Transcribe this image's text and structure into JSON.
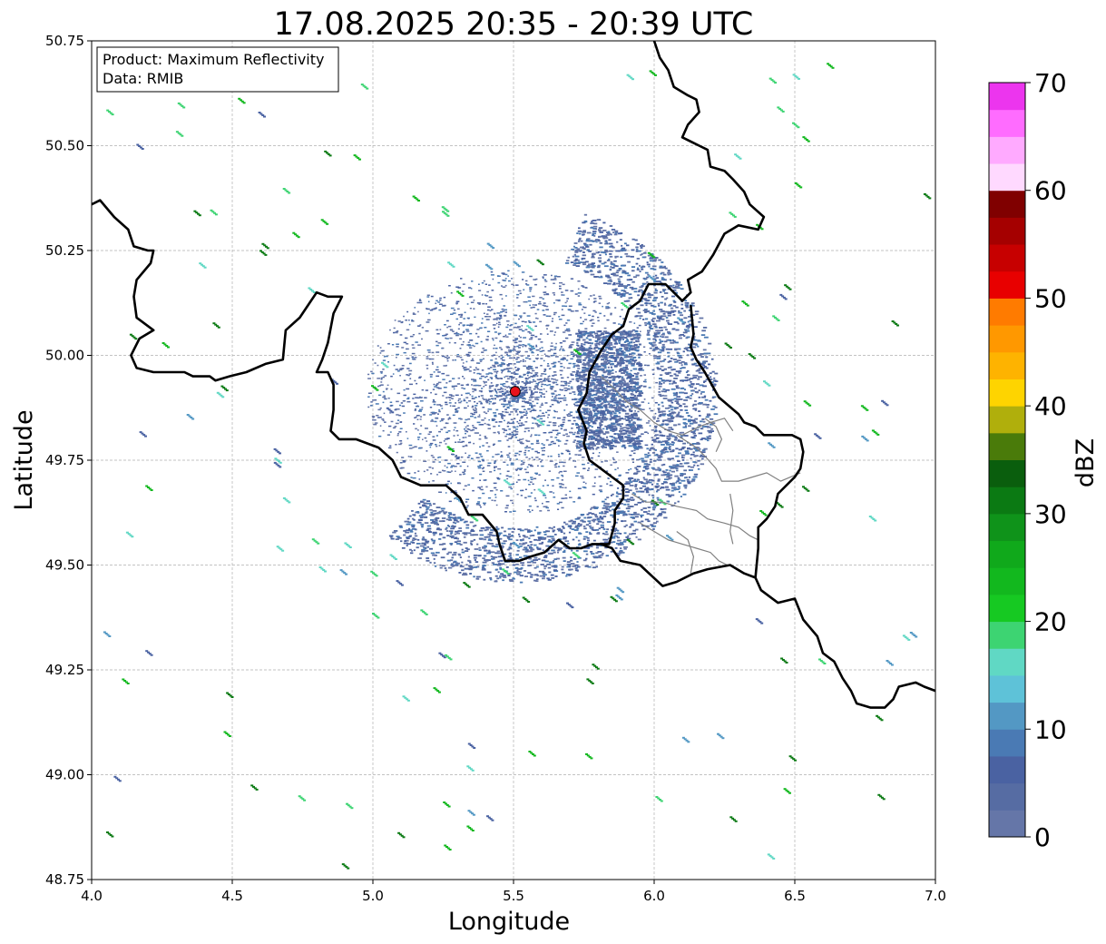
{
  "title": "17.08.2025 20:35 - 20:39 UTC",
  "info_box": {
    "product": "Product: Maximum Reflectivity",
    "data": "Data: RMIB"
  },
  "x_axis": {
    "label": "Longitude",
    "range": [
      4.0,
      7.0
    ],
    "ticks": [
      {
        "value": 4.0,
        "label": "4.0"
      },
      {
        "value": 4.5,
        "label": "4.5"
      },
      {
        "value": 5.0,
        "label": "5.0"
      },
      {
        "value": 5.5,
        "label": "5.5"
      },
      {
        "value": 6.0,
        "label": "6.0"
      },
      {
        "value": 6.5,
        "label": "6.5"
      },
      {
        "value": 7.0,
        "label": "7.0"
      }
    ]
  },
  "y_axis": {
    "label": "Latitude",
    "range": [
      48.75,
      50.75
    ],
    "ticks": [
      {
        "value": 48.75,
        "label": "48.75"
      },
      {
        "value": 49.0,
        "label": "49.00"
      },
      {
        "value": 49.25,
        "label": "49.25"
      },
      {
        "value": 49.5,
        "label": "49.50"
      },
      {
        "value": 49.75,
        "label": "49.75"
      },
      {
        "value": 50.0,
        "label": "50.00"
      },
      {
        "value": 50.25,
        "label": "50.25"
      },
      {
        "value": 50.5,
        "label": "50.50"
      },
      {
        "value": 50.75,
        "label": "50.75"
      }
    ]
  },
  "grid": true,
  "radar_site": {
    "lon": 5.506,
    "lat": 49.914,
    "color": "#e8131b"
  },
  "colorbar": {
    "label": "dBZ",
    "range": [
      0,
      70
    ],
    "ticks": [
      {
        "value": 0,
        "label": "0"
      },
      {
        "value": 10,
        "label": "10"
      },
      {
        "value": 20,
        "label": "20"
      },
      {
        "value": 30,
        "label": "30"
      },
      {
        "value": 40,
        "label": "40"
      },
      {
        "value": 50,
        "label": "50"
      },
      {
        "value": 60,
        "label": "60"
      },
      {
        "value": 70,
        "label": "70"
      }
    ],
    "colors": [
      "#6576a8",
      "#566ca3",
      "#4a62a2",
      "#4a7ab4",
      "#5398c4",
      "#5ec2d8",
      "#60d8c4",
      "#3dd472",
      "#16c922",
      "#12b81e",
      "#10a91b",
      "#0f931a",
      "#0b7a13",
      "#0a5e0d",
      "#4a7b0a",
      "#b0af0c",
      "#fed400",
      "#feb300",
      "#ff9800",
      "#ff7b00",
      "#e80000",
      "#c70000",
      "#a50000",
      "#800000",
      "#ffd9ff",
      "#ffaaff",
      "#ff6cff",
      "#ec35ee"
    ]
  },
  "map_layers": {
    "borders": [
      [
        [
          4.0,
          50.36
        ],
        [
          4.03,
          50.37
        ],
        [
          4.08,
          50.33
        ],
        [
          4.13,
          50.3
        ],
        [
          4.15,
          50.26
        ],
        [
          4.2,
          50.25
        ],
        [
          4.22,
          50.25
        ],
        [
          4.21,
          50.22
        ],
        [
          4.16,
          50.18
        ],
        [
          4.15,
          50.14
        ],
        [
          4.16,
          50.09
        ],
        [
          4.22,
          50.06
        ],
        [
          4.17,
          50.04
        ],
        [
          4.14,
          50.0
        ],
        [
          4.16,
          49.97
        ],
        [
          4.22,
          49.96
        ],
        [
          4.33,
          49.96
        ],
        [
          4.36,
          49.95
        ],
        [
          4.42,
          49.95
        ],
        [
          4.44,
          49.94
        ],
        [
          4.49,
          49.95
        ],
        [
          4.55,
          49.96
        ],
        [
          4.62,
          49.98
        ],
        [
          4.68,
          49.99
        ],
        [
          4.69,
          50.06
        ],
        [
          4.74,
          50.09
        ],
        [
          4.78,
          50.13
        ],
        [
          4.8,
          50.15
        ],
        [
          4.84,
          50.14
        ],
        [
          4.89,
          50.14
        ],
        [
          4.86,
          50.1
        ],
        [
          4.84,
          50.03
        ],
        [
          4.82,
          49.99
        ],
        [
          4.8,
          49.96
        ],
        [
          4.84,
          49.96
        ],
        [
          4.86,
          49.93
        ],
        [
          4.86,
          49.87
        ],
        [
          4.85,
          49.82
        ],
        [
          4.88,
          49.8
        ],
        [
          4.94,
          49.8
        ],
        [
          4.98,
          49.79
        ],
        [
          5.02,
          49.78
        ],
        [
          5.07,
          49.75
        ],
        [
          5.1,
          49.71
        ],
        [
          5.17,
          49.69
        ],
        [
          5.22,
          49.69
        ],
        [
          5.26,
          49.69
        ],
        [
          5.31,
          49.66
        ],
        [
          5.34,
          49.62
        ],
        [
          5.39,
          49.62
        ],
        [
          5.44,
          49.58
        ],
        [
          5.45,
          49.55
        ],
        [
          5.47,
          49.51
        ],
        [
          5.52,
          49.51
        ],
        [
          5.56,
          49.52
        ],
        [
          5.61,
          49.53
        ],
        [
          5.66,
          49.56
        ],
        [
          5.7,
          49.54
        ],
        [
          5.74,
          49.54
        ],
        [
          5.78,
          49.55
        ],
        [
          5.81,
          49.55
        ],
        [
          5.85,
          49.54
        ],
        [
          5.88,
          49.51
        ],
        [
          5.95,
          49.5
        ],
        [
          6.03,
          49.45
        ],
        [
          6.08,
          49.46
        ],
        [
          6.14,
          49.48
        ],
        [
          6.19,
          49.49
        ],
        [
          6.27,
          49.5
        ],
        [
          6.32,
          49.48
        ],
        [
          6.36,
          49.47
        ],
        [
          6.38,
          49.44
        ],
        [
          6.44,
          49.41
        ],
        [
          6.5,
          49.42
        ],
        [
          6.53,
          49.37
        ],
        [
          6.58,
          49.33
        ],
        [
          6.6,
          49.29
        ],
        [
          6.64,
          49.27
        ],
        [
          6.67,
          49.23
        ],
        [
          6.7,
          49.2
        ],
        [
          6.72,
          49.17
        ],
        [
          6.77,
          49.16
        ],
        [
          6.82,
          49.16
        ],
        [
          6.85,
          49.18
        ],
        [
          6.87,
          49.21
        ],
        [
          6.93,
          49.22
        ],
        [
          6.96,
          49.21
        ],
        [
          7.0,
          49.2
        ]
      ],
      [
        [
          6.0,
          50.75
        ],
        [
          6.02,
          50.71
        ],
        [
          6.05,
          50.68
        ],
        [
          6.07,
          50.64
        ],
        [
          6.12,
          50.62
        ],
        [
          6.15,
          50.61
        ],
        [
          6.16,
          50.58
        ],
        [
          6.12,
          50.55
        ],
        [
          6.1,
          50.52
        ],
        [
          6.16,
          50.5
        ],
        [
          6.19,
          50.49
        ],
        [
          6.2,
          50.45
        ],
        [
          6.25,
          50.44
        ],
        [
          6.28,
          50.42
        ],
        [
          6.32,
          50.39
        ],
        [
          6.34,
          50.36
        ],
        [
          6.39,
          50.33
        ],
        [
          6.37,
          50.3
        ],
        [
          6.3,
          50.31
        ],
        [
          6.25,
          50.29
        ],
        [
          6.21,
          50.24
        ],
        [
          6.17,
          50.2
        ],
        [
          6.12,
          50.18
        ],
        [
          6.13,
          50.15
        ],
        [
          6.1,
          50.13
        ],
        [
          6.04,
          50.17
        ],
        [
          5.98,
          50.17
        ],
        [
          5.95,
          50.13
        ],
        [
          5.91,
          50.11
        ],
        [
          5.89,
          50.07
        ],
        [
          5.85,
          50.05
        ],
        [
          5.81,
          50.01
        ],
        [
          5.77,
          49.96
        ],
        [
          5.76,
          49.91
        ],
        [
          5.73,
          49.87
        ],
        [
          5.76,
          49.82
        ],
        [
          5.75,
          49.79
        ],
        [
          5.77,
          49.75
        ],
        [
          5.81,
          49.73
        ],
        [
          5.85,
          49.71
        ],
        [
          5.89,
          49.69
        ],
        [
          5.89,
          49.66
        ],
        [
          5.86,
          49.63
        ],
        [
          5.86,
          49.6
        ],
        [
          5.84,
          49.55
        ],
        [
          5.81,
          49.55
        ]
      ],
      [
        [
          6.13,
          50.12
        ],
        [
          6.14,
          50.05
        ],
        [
          6.13,
          50.02
        ],
        [
          6.15,
          49.99
        ],
        [
          6.18,
          49.96
        ],
        [
          6.23,
          49.9
        ],
        [
          6.3,
          49.86
        ],
        [
          6.32,
          49.84
        ],
        [
          6.36,
          49.83
        ],
        [
          6.39,
          49.81
        ],
        [
          6.45,
          49.81
        ],
        [
          6.49,
          49.81
        ],
        [
          6.52,
          49.8
        ],
        [
          6.53,
          49.77
        ],
        [
          6.52,
          49.73
        ],
        [
          6.5,
          49.71
        ],
        [
          6.44,
          49.67
        ],
        [
          6.43,
          49.64
        ],
        [
          6.4,
          49.61
        ],
        [
          6.37,
          49.59
        ],
        [
          6.37,
          49.54
        ],
        [
          6.36,
          49.47
        ]
      ]
    ],
    "regions": [
      [
        [
          5.81,
          49.95
        ],
        [
          5.86,
          49.92
        ],
        [
          5.9,
          49.89
        ],
        [
          5.95,
          49.87
        ],
        [
          6.0,
          49.84
        ],
        [
          6.05,
          49.82
        ],
        [
          6.1,
          49.81
        ],
        [
          6.16,
          49.83
        ],
        [
          6.2,
          49.84
        ],
        [
          6.25,
          49.85
        ],
        [
          6.28,
          49.82
        ]
      ],
      [
        [
          6.08,
          49.81
        ],
        [
          6.15,
          49.78
        ],
        [
          6.18,
          49.76
        ],
        [
          6.22,
          49.73
        ],
        [
          6.24,
          49.7
        ],
        [
          6.3,
          49.7
        ],
        [
          6.35,
          49.71
        ],
        [
          6.4,
          49.72
        ],
        [
          6.45,
          49.7
        ],
        [
          6.52,
          49.72
        ]
      ],
      [
        [
          5.92,
          49.67
        ],
        [
          5.97,
          49.65
        ],
        [
          6.03,
          49.65
        ],
        [
          6.08,
          49.64
        ],
        [
          6.15,
          49.63
        ],
        [
          6.19,
          49.61
        ],
        [
          6.25,
          49.6
        ],
        [
          6.3,
          49.59
        ],
        [
          6.34,
          49.57
        ],
        [
          6.37,
          49.56
        ]
      ],
      [
        [
          5.95,
          49.6
        ],
        [
          6.0,
          49.58
        ],
        [
          6.05,
          49.56
        ],
        [
          6.1,
          49.55
        ],
        [
          6.15,
          49.54
        ],
        [
          6.2,
          49.53
        ],
        [
          6.23,
          49.51
        ],
        [
          6.26,
          49.5
        ]
      ],
      [
        [
          6.08,
          49.58
        ],
        [
          6.12,
          49.56
        ],
        [
          6.14,
          49.52
        ],
        [
          6.13,
          49.48
        ]
      ],
      [
        [
          6.27,
          49.67
        ],
        [
          6.28,
          49.63
        ],
        [
          6.27,
          49.58
        ],
        [
          6.28,
          49.55
        ]
      ],
      [
        [
          6.18,
          49.85
        ],
        [
          6.22,
          49.83
        ],
        [
          6.24,
          49.8
        ],
        [
          6.22,
          49.77
        ]
      ]
    ]
  }
}
